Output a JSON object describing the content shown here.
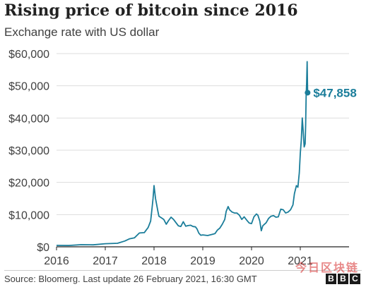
{
  "title": "Rising price of bitcoin since 2016",
  "subtitle": "Exchange rate with US dollar",
  "source": "Source: Bloomerg. Last update 26 February 2021, 16:30 GMT",
  "logo": [
    "B",
    "B",
    "C"
  ],
  "watermark": "今日区块链",
  "chart_data": {
    "type": "line",
    "title": "Rising price of bitcoin since 2016",
    "subtitle": "Exchange rate with US dollar",
    "xlabel": "",
    "ylabel": "",
    "xlim": [
      2016,
      2022
    ],
    "ylim": [
      0,
      60000
    ],
    "grid": true,
    "x_ticks": [
      2016,
      2017,
      2018,
      2019,
      2020,
      2021
    ],
    "x_tick_labels": [
      "2016",
      "2017",
      "2018",
      "2019",
      "2020",
      "2021"
    ],
    "y_ticks": [
      0,
      10000,
      20000,
      30000,
      40000,
      50000,
      60000
    ],
    "y_tick_labels": [
      "$0",
      "$10,000",
      "$20,000",
      "$30,000",
      "$40,000",
      "$50,000",
      "$60,000"
    ],
    "colors": {
      "line": "#1a7d9a",
      "grid": "#dddddd",
      "axis": "#222222",
      "label": "#1a7d9a"
    },
    "series": [
      {
        "name": "",
        "x": [
          2016.0,
          2016.25,
          2016.5,
          2016.75,
          2017.0,
          2017.25,
          2017.4,
          2017.5,
          2017.6,
          2017.7,
          2017.8,
          2017.88,
          2017.93,
          2017.96,
          2017.98,
          2018.0,
          2018.03,
          2018.05,
          2018.08,
          2018.1,
          2018.15,
          2018.2,
          2018.25,
          2018.3,
          2018.35,
          2018.4,
          2018.45,
          2018.5,
          2018.55,
          2018.6,
          2018.65,
          2018.7,
          2018.75,
          2018.8,
          2018.85,
          2018.88,
          2018.92,
          2018.96,
          2019.0,
          2019.1,
          2019.2,
          2019.25,
          2019.3,
          2019.35,
          2019.4,
          2019.45,
          2019.48,
          2019.52,
          2019.55,
          2019.6,
          2019.65,
          2019.7,
          2019.75,
          2019.8,
          2019.85,
          2019.9,
          2019.95,
          2020.0,
          2020.05,
          2020.1,
          2020.13,
          2020.17,
          2020.2,
          2020.23,
          2020.25,
          2020.3,
          2020.35,
          2020.4,
          2020.45,
          2020.5,
          2020.55,
          2020.6,
          2020.65,
          2020.7,
          2020.75,
          2020.8,
          2020.85,
          2020.88,
          2020.92,
          2020.95,
          2020.98,
          2021.0,
          2021.02,
          2021.04,
          2021.06,
          2021.08,
          2021.1,
          2021.11,
          2021.12,
          2021.13,
          2021.14,
          2021.15
        ],
        "y": [
          430,
          420,
          650,
          610,
          960,
          1100,
          1800,
          2500,
          2800,
          4300,
          4400,
          6000,
          8000,
          12000,
          15000,
          19000,
          15000,
          13500,
          11000,
          9500,
          9000,
          8500,
          7000,
          8200,
          9200,
          8500,
          7500,
          6500,
          6300,
          7800,
          6400,
          6600,
          6700,
          6300,
          6200,
          5600,
          4200,
          3600,
          3700,
          3500,
          3900,
          4100,
          5200,
          5800,
          7000,
          8500,
          11000,
          12500,
          11500,
          10800,
          10500,
          10500,
          9800,
          8500,
          9300,
          8300,
          7400,
          7200,
          9300,
          10200,
          9800,
          8000,
          5000,
          6500,
          6800,
          7500,
          8800,
          9500,
          9700,
          9200,
          9300,
          11700,
          11500,
          10500,
          10800,
          11500,
          13000,
          16500,
          19000,
          18500,
          23000,
          29000,
          33000,
          40000,
          36000,
          31000,
          32000,
          38000,
          47000,
          51000,
          57500,
          47858
        ]
      }
    ],
    "annotations": [
      {
        "x": 2021.15,
        "y": 47858,
        "text": "$47,858"
      }
    ]
  }
}
